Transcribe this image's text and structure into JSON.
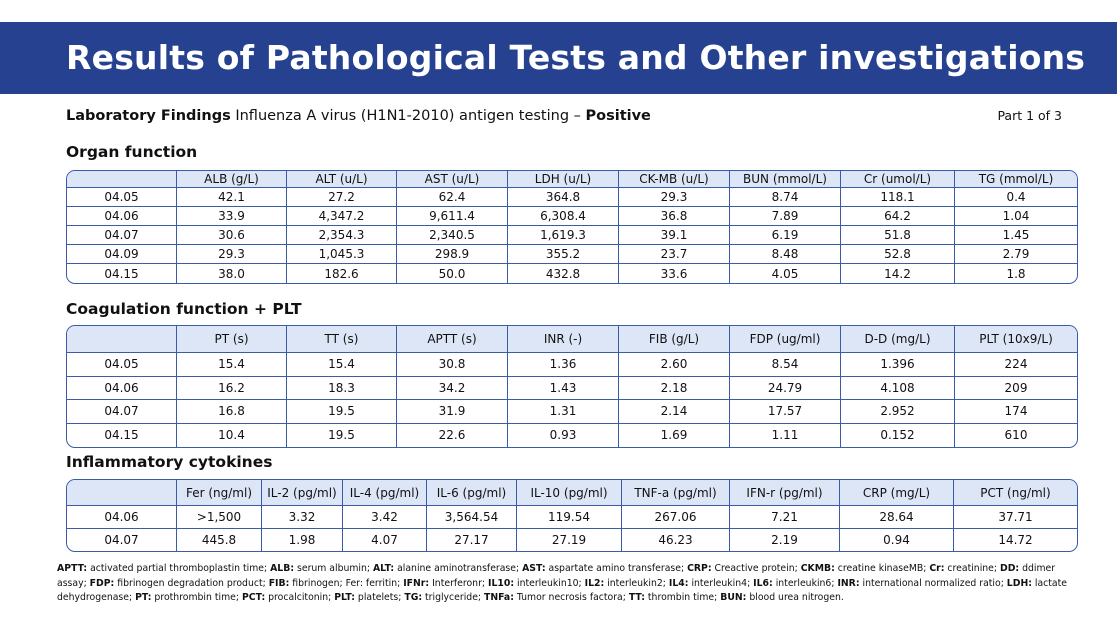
{
  "banner": {
    "title": "Results of Pathological Tests and Other investigations"
  },
  "lab": {
    "label": "Laboratory Findings",
    "text": "Influenza A virus (H1N1-2010) antigen testing –",
    "result": "Positive"
  },
  "part": "Part 1 of 3",
  "organ": {
    "title": "Organ function",
    "headers": [
      "",
      "ALB (g/L)",
      "ALT (u/L)",
      "AST (u/L)",
      "LDH (u/L)",
      "CK-MB (u/L)",
      "BUN (mmol/L)",
      "Cr (umol/L)",
      "TG (mmol/L)"
    ],
    "rows": [
      [
        "04.05",
        "42.1",
        "27.2",
        "62.4",
        "364.8",
        "29.3",
        "8.74",
        "118.1",
        "0.4"
      ],
      [
        "04.06",
        "33.9",
        "4,347.2",
        "9,611.4",
        "6,308.4",
        "36.8",
        "7.89",
        "64.2",
        "1.04"
      ],
      [
        "04.07",
        "30.6",
        "2,354.3",
        "2,340.5",
        "1,619.3",
        "39.1",
        "6.19",
        "51.8",
        "1.45"
      ],
      [
        "04.09",
        "29.3",
        "1,045.3",
        "298.9",
        "355.2",
        "23.7",
        "8.48",
        "52.8",
        "2.79"
      ],
      [
        "04.15",
        "38.0",
        "182.6",
        "50.0",
        "432.8",
        "33.6",
        "4.05",
        "14.2",
        "1.8"
      ]
    ]
  },
  "coag": {
    "title": "Coagulation function + PLT",
    "headers": [
      "",
      "PT (s)",
      "TT (s)",
      "APTT (s)",
      "INR (-)",
      "FIB (g/L)",
      "FDP (ug/ml)",
      "D-D (mg/L)",
      "PLT (10x9/L)"
    ],
    "rows": [
      [
        "04.05",
        "15.4",
        "15.4",
        "30.8",
        "1.36",
        "2.60",
        "8.54",
        "1.396",
        "224"
      ],
      [
        "04.06",
        "16.2",
        "18.3",
        "34.2",
        "1.43",
        "2.18",
        "24.79",
        "4.108",
        "209"
      ],
      [
        "04.07",
        "16.8",
        "19.5",
        "31.9",
        "1.31",
        "2.14",
        "17.57",
        "2.952",
        "174"
      ],
      [
        "04.15",
        "10.4",
        "19.5",
        "22.6",
        "0.93",
        "1.69",
        "1.11",
        "0.152",
        "610"
      ]
    ]
  },
  "cyto": {
    "title": "Inflammatory cytokines",
    "headers": [
      "",
      "Fer (ng/ml)",
      "IL-2 (pg/ml)",
      "IL-4 (pg/ml)",
      "IL-6 (pg/ml)",
      "IL-10 (pg/ml)",
      "TNF-a (pg/ml)",
      "IFN-r (pg/ml)",
      "CRP (mg/L)",
      "PCT (ng/ml)"
    ],
    "rows": [
      [
        "04.06",
        ">1,500",
        "3.32",
        "3.42",
        "3,564.54",
        "119.54",
        "267.06",
        "7.21",
        "28.64",
        "37.71"
      ],
      [
        "04.07",
        "445.8",
        "1.98",
        "4.07",
        "27.17",
        "27.19",
        "46.23",
        "2.19",
        "0.94",
        "14.72"
      ]
    ]
  },
  "legend": [
    [
      "APTT:",
      " activated partial thromboplastin time; "
    ],
    [
      "ALB:",
      " serum albumin; "
    ],
    [
      "ALT:",
      " alanine aminotransferase; "
    ],
    [
      "AST:",
      " aspartate amino transferase; "
    ],
    [
      "CRP:",
      " Creactive protein; "
    ],
    [
      "CKMB:",
      " creatine kinaseMB; "
    ],
    [
      "Cr:",
      " creatinine; "
    ],
    [
      "DD:",
      " ddimer assay; "
    ],
    [
      "FDP:",
      " fibrinogen degradation product; "
    ],
    [
      "FIB:",
      " fibrinogen; Fer: ferritin; "
    ],
    [
      "IFNr:",
      " Interferonr; "
    ],
    [
      "IL10:",
      " interleukin10; "
    ],
    [
      "IL2:",
      " interleukin2; "
    ],
    [
      "IL4:",
      " interleukin4; "
    ],
    [
      "IL6:",
      " interleukin6; "
    ],
    [
      "INR:",
      " international normalized ratio; "
    ],
    [
      "LDH:",
      " lactate dehydrogenase; "
    ],
    [
      "PT:",
      " prothrombin time; "
    ],
    [
      "PCT:",
      " procalcitonin; "
    ],
    [
      "PLT:",
      " platelets; "
    ],
    [
      "TG:",
      " triglyceride; "
    ],
    [
      "TNFa:",
      " Tumor necrosis factora; "
    ],
    [
      "TT:",
      " thrombin time; "
    ],
    [
      "BUN:",
      " blood urea nitrogen."
    ]
  ]
}
